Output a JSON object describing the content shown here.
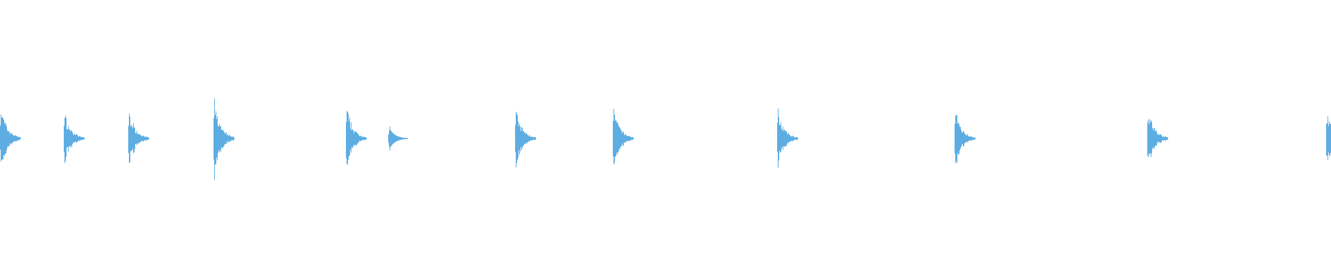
{
  "chart_data": {
    "type": "waveform",
    "title": "",
    "xlabel": "",
    "ylabel": "",
    "ylim": [
      -1,
      1
    ],
    "grid": false,
    "color": "#5dade2",
    "background": "#ffffff",
    "bursts": [
      {
        "peak": 0.57,
        "decay": "noisy"
      },
      {
        "peak": 0.44,
        "decay": "noisy"
      },
      {
        "peak": 0.5,
        "decay": "noisy"
      },
      {
        "peak": 0.63,
        "decay": "noisy"
      },
      {
        "peak": 0.53,
        "decay": "noisy"
      },
      {
        "peak": 0.22,
        "decay": "smooth"
      },
      {
        "peak": 0.5,
        "decay": "noisy"
      },
      {
        "peak": 0.53,
        "decay": "noisy"
      },
      {
        "peak": 0.48,
        "decay": "noisy"
      },
      {
        "peak": 0.5,
        "decay": "noisy"
      },
      {
        "peak": 0.5,
        "decay": "noisy"
      },
      {
        "peak": 0.48,
        "decay": "noisy"
      }
    ]
  }
}
